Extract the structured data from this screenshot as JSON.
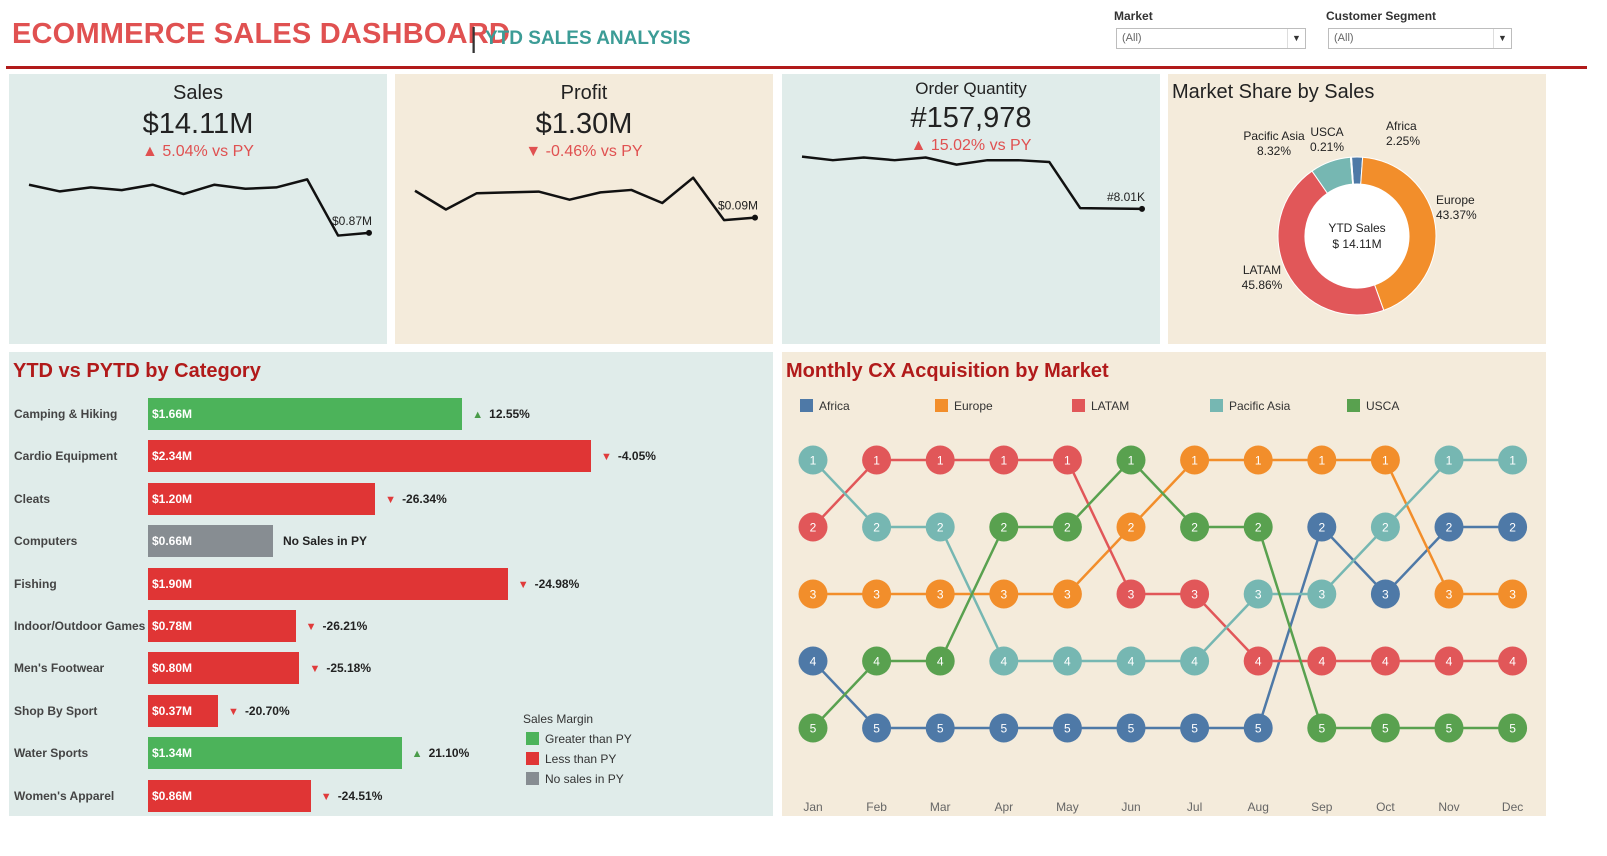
{
  "header": {
    "title": "ECOMMERCE SALES DASHBOARD",
    "separator": "|",
    "subtitle": "YTD SALES ANALYSIS",
    "filters": {
      "market": {
        "label": "Market",
        "value": "(All)"
      },
      "segment": {
        "label": "Customer Segment",
        "value": "(All)"
      }
    }
  },
  "kpis": {
    "sales": {
      "title": "Sales",
      "value": "$14.11M",
      "delta_arrow": "▲",
      "delta": "5.04% vs PY",
      "last_label": "$0.87M"
    },
    "profit": {
      "title": "Profit",
      "value": "$1.30M",
      "delta_arrow": "▼",
      "delta": "-0.46% vs PY",
      "last_label": "$0.09M"
    },
    "orders": {
      "title": "Order Quantity",
      "value": "#157,978",
      "delta_arrow": "▲",
      "delta": "15.02% vs PY",
      "last_label": "#8.01K"
    }
  },
  "market_share": {
    "title": "Market Share by Sales",
    "center_line1": "YTD Sales",
    "center_line2": "$ 14.11M"
  },
  "category": {
    "title": "YTD vs PYTD by Category",
    "legend_title": "Sales Margin",
    "legend": [
      "Greater than PY",
      "Less than PY",
      "No sales in PY"
    ]
  },
  "bump": {
    "title": "Monthly CX Acquisition by Market"
  },
  "colors": {
    "green": "#4cb35a",
    "red": "#e03535",
    "grey": "#878d92",
    "africa": "#4e79a7",
    "europe": "#f28e2b",
    "latam": "#e15759",
    "pacific_asia": "#76b7b2",
    "usca": "#59a14f"
  },
  "chart_data": [
    {
      "type": "line",
      "name_ref": "sales-sparkline",
      "x": [
        "Jan",
        "Feb",
        "Mar",
        "Apr",
        "May",
        "Jun",
        "Jul",
        "Aug",
        "Sep",
        "Oct",
        "Nov",
        "Dec"
      ],
      "values": [
        1.23,
        1.18,
        1.21,
        1.19,
        1.23,
        1.16,
        1.23,
        1.2,
        1.21,
        1.27,
        0.85,
        0.87
      ],
      "ylim": [
        0.6,
        1.4
      ]
    },
    {
      "type": "line",
      "name_ref": "profit-sparkline",
      "x": [
        "Jan",
        "Feb",
        "Mar",
        "Apr",
        "May",
        "Jun",
        "Jul",
        "Aug",
        "Sep",
        "Oct",
        "Nov",
        "Dec"
      ],
      "values": [
        0.123,
        0.1,
        0.12,
        0.121,
        0.122,
        0.112,
        0.121,
        0.124,
        0.108,
        0.139,
        0.087,
        0.09
      ],
      "ylim": [
        0.0,
        0.2
      ]
    },
    {
      "type": "line",
      "name_ref": "orders-sparkline",
      "x": [
        "Jan",
        "Feb",
        "Mar",
        "Apr",
        "May",
        "Jun",
        "Jul",
        "Aug",
        "Sep",
        "Oct",
        "Nov",
        "Dec"
      ],
      "values": [
        13.9,
        13.5,
        13.8,
        13.5,
        13.8,
        13.0,
        13.5,
        13.5,
        13.3,
        8.1,
        8.05,
        8.01
      ],
      "ylim": [
        0,
        16
      ]
    },
    {
      "type": "pie",
      "title": "Market Share by Sales",
      "slices": [
        {
          "name": "Africa",
          "value": 2.25,
          "label": "2.25%",
          "color": "#4e79a7"
        },
        {
          "name": "Europe",
          "value": 43.37,
          "label": "43.37%",
          "color": "#f28e2b"
        },
        {
          "name": "LATAM",
          "value": 45.86,
          "label": "45.86%",
          "color": "#e15759"
        },
        {
          "name": "Pacific Asia",
          "value": 8.32,
          "label": "8.32%",
          "color": "#76b7b2"
        },
        {
          "name": "USCA",
          "value": 0.21,
          "label": "0.21%",
          "color": "#4e79a7"
        }
      ]
    },
    {
      "type": "bar",
      "title": "YTD vs PYTD by Category",
      "orientation": "horizontal",
      "categories": [
        "Camping & Hiking",
        "Cardio Equipment",
        "Cleats",
        "Computers",
        "Fishing",
        "Indoor/Outdoor Games",
        "Men's Footwear",
        "Shop By Sport",
        "Water Sports",
        "Women's Apparel"
      ],
      "values": [
        1.66,
        2.34,
        1.2,
        0.66,
        1.9,
        0.78,
        0.8,
        0.37,
        1.34,
        0.86
      ],
      "value_labels": [
        "$1.66M",
        "$2.34M",
        "$1.20M",
        "$0.66M",
        "$1.90M",
        "$0.78M",
        "$0.80M",
        "$0.37M",
        "$1.34M",
        "$0.86M"
      ],
      "change": [
        "12.55%",
        "-4.05%",
        "-26.34%",
        "No Sales in PY",
        "-24.98%",
        "-26.21%",
        "-25.18%",
        "-20.70%",
        "21.10%",
        "-24.51%"
      ],
      "status": [
        "up",
        "down",
        "down",
        "none",
        "down",
        "down",
        "down",
        "down",
        "up",
        "down"
      ],
      "xlim": [
        0,
        2.5
      ]
    },
    {
      "type": "line",
      "title": "Monthly CX Acquisition by Market",
      "subtype": "bump-rank",
      "categories": [
        "Jan",
        "Feb",
        "Mar",
        "Apr",
        "May",
        "Jun",
        "Jul",
        "Aug",
        "Sep",
        "Oct",
        "Nov",
        "Dec"
      ],
      "ylim": [
        1,
        5
      ],
      "series": [
        {
          "name": "Africa",
          "color": "#4e79a7",
          "ranks": [
            4,
            5,
            5,
            5,
            5,
            5,
            5,
            5,
            2,
            3,
            2,
            2
          ]
        },
        {
          "name": "Europe",
          "color": "#f28e2b",
          "ranks": [
            3,
            3,
            3,
            3,
            3,
            2,
            1,
            1,
            1,
            1,
            3,
            3
          ]
        },
        {
          "name": "LATAM",
          "color": "#e15759",
          "ranks": [
            2,
            1,
            1,
            1,
            1,
            3,
            3,
            4,
            4,
            4,
            4,
            4
          ]
        },
        {
          "name": "Pacific Asia",
          "color": "#76b7b2",
          "ranks": [
            1,
            2,
            2,
            4,
            4,
            4,
            4,
            3,
            3,
            2,
            1,
            1
          ]
        },
        {
          "name": "USCA",
          "color": "#59a14f",
          "ranks": [
            5,
            4,
            4,
            2,
            2,
            1,
            2,
            2,
            5,
            5,
            5,
            5
          ]
        }
      ]
    }
  ]
}
